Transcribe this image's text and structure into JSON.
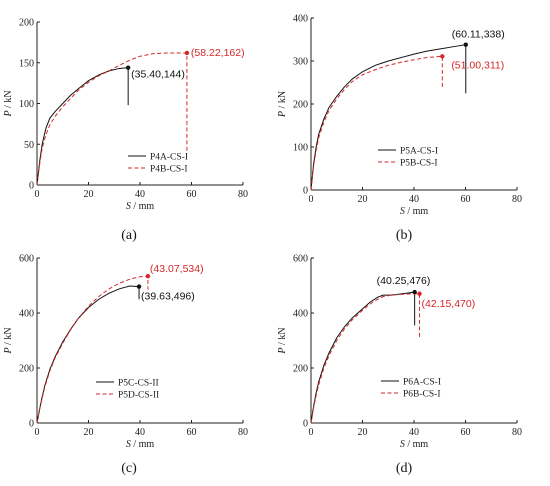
{
  "colors": {
    "black": "#111111",
    "red": "#d62728"
  },
  "chart_data": [
    {
      "type": "line",
      "panel_label": "(a)",
      "xlabel": "S",
      "xunit": "/ mm",
      "ylabel": "P",
      "yunit": "/ kN",
      "xlim": [
        0,
        80
      ],
      "ylim": [
        0,
        200
      ],
      "xticks": [
        0,
        20,
        40,
        60,
        80
      ],
      "yticks": [
        0,
        50,
        100,
        150,
        200
      ],
      "legend_position": "bottom-right",
      "series": [
        {
          "name": "P4A-CS-I",
          "color": "#111111",
          "dash": "solid",
          "x": [
            0,
            1,
            2,
            3.5,
            5,
            7,
            10,
            13,
            16,
            20,
            24,
            28,
            32,
            35.4,
            35.4,
            35.4
          ],
          "y": [
            0,
            28,
            50,
            70,
            82,
            90,
            100,
            110,
            118,
            128,
            135,
            140,
            143,
            144,
            125,
            98
          ]
        },
        {
          "name": "P4B-CS-I",
          "color": "#d62728",
          "dash": "dashed",
          "x": [
            0,
            1,
            2,
            3.5,
            5,
            7,
            10,
            13,
            16,
            20,
            24,
            28,
            32,
            36,
            40,
            45,
            50,
            55,
            58.22,
            58.22,
            58.22
          ],
          "y": [
            0,
            25,
            45,
            62,
            74,
            84,
            96,
            106,
            116,
            126,
            134,
            140,
            147,
            153,
            158,
            161,
            162,
            162,
            162,
            100,
            42
          ]
        }
      ],
      "annotations": [
        {
          "text": "(35.40,144)",
          "x": 35.4,
          "y": 144,
          "color": "#111111"
        },
        {
          "text": "(58.22,162)",
          "x": 58.22,
          "y": 162,
          "color": "#d62728"
        }
      ]
    },
    {
      "type": "line",
      "panel_label": "(b)",
      "xlabel": "S",
      "xunit": "/ mm",
      "ylabel": "P",
      "yunit": "/ kN",
      "xlim": [
        0,
        80
      ],
      "ylim": [
        0,
        400
      ],
      "xticks": [
        0,
        20,
        40,
        60,
        80
      ],
      "yticks": [
        0,
        100,
        200,
        300,
        400
      ],
      "legend_position": "bottom-right",
      "series": [
        {
          "name": "P5A-CS-I",
          "color": "#111111",
          "dash": "solid",
          "x": [
            0,
            1,
            2,
            3,
            5,
            7,
            10,
            13,
            16,
            20,
            25,
            30,
            35,
            40,
            45,
            50,
            55,
            60.11,
            60.11,
            60.11
          ],
          "y": [
            0,
            60,
            100,
            130,
            165,
            192,
            218,
            240,
            258,
            275,
            290,
            300,
            308,
            316,
            323,
            328,
            333,
            338,
            280,
            225
          ]
        },
        {
          "name": "P5B-CS-I",
          "color": "#d62728",
          "dash": "dashed",
          "x": [
            0,
            1,
            2,
            3,
            5,
            7,
            10,
            13,
            16,
            20,
            25,
            30,
            35,
            40,
            45,
            51.0,
            51.0,
            51.0
          ],
          "y": [
            0,
            55,
            92,
            122,
            158,
            185,
            212,
            234,
            252,
            268,
            280,
            290,
            297,
            303,
            308,
            311,
            270,
            235
          ]
        }
      ],
      "annotations": [
        {
          "text": "(60.11,338)",
          "x": 60.11,
          "y": 338,
          "color": "#111111"
        },
        {
          "text": "(51.00,311)",
          "x": 51.0,
          "y": 311,
          "color": "#d62728"
        }
      ]
    },
    {
      "type": "line",
      "panel_label": "(c)",
      "xlabel": "S",
      "xunit": "/ mm",
      "ylabel": "P",
      "yunit": "/ kN",
      "xlim": [
        0,
        80
      ],
      "ylim": [
        0,
        600
      ],
      "xticks": [
        0,
        20,
        40,
        60,
        80
      ],
      "yticks": [
        0,
        200,
        400,
        600
      ],
      "legend_position": "bottom-right",
      "series": [
        {
          "name": "P5C-CS-II",
          "color": "#111111",
          "dash": "solid",
          "x": [
            0,
            1,
            2,
            3,
            5,
            7,
            10,
            13,
            16,
            20,
            24,
            28,
            32,
            36,
            39.63,
            39.63,
            39.63
          ],
          "y": [
            0,
            50,
            95,
            135,
            195,
            240,
            295,
            340,
            380,
            420,
            450,
            472,
            488,
            498,
            496,
            475,
            450
          ]
        },
        {
          "name": "P5D-CS-II",
          "color": "#d62728",
          "dash": "dashed",
          "x": [
            0,
            1,
            2,
            3,
            5,
            7,
            10,
            13,
            16,
            20,
            24,
            28,
            32,
            36,
            40,
            43.07,
            43.07,
            43.07
          ],
          "y": [
            0,
            48,
            90,
            130,
            190,
            236,
            290,
            338,
            380,
            425,
            460,
            488,
            508,
            523,
            532,
            534,
            510,
            485
          ]
        }
      ],
      "annotations": [
        {
          "text": "(43.07,534)",
          "x": 43.07,
          "y": 534,
          "color": "#d62728"
        },
        {
          "text": "(39.63,496)",
          "x": 39.63,
          "y": 496,
          "color": "#111111"
        }
      ]
    },
    {
      "type": "line",
      "panel_label": "(d)",
      "xlabel": "S",
      "xunit": "/ mm",
      "ylabel": "P",
      "yunit": "/ kN",
      "xlim": [
        0,
        80
      ],
      "ylim": [
        0,
        600
      ],
      "xticks": [
        0,
        20,
        40,
        60,
        80
      ],
      "yticks": [
        0,
        200,
        400,
        600
      ],
      "legend_position": "bottom-right",
      "series": [
        {
          "name": "P6A-CS-I",
          "color": "#111111",
          "dash": "solid",
          "x": [
            0,
            1,
            2,
            3,
            5,
            7,
            10,
            13,
            16,
            20,
            23,
            26,
            28,
            31,
            34,
            37,
            40.25,
            40.25,
            40.25
          ],
          "y": [
            0,
            60,
            110,
            150,
            210,
            255,
            310,
            350,
            382,
            415,
            440,
            458,
            465,
            465,
            468,
            472,
            476,
            420,
            355
          ]
        },
        {
          "name": "P6B-CS-I",
          "color": "#d62728",
          "dash": "dashed",
          "x": [
            0,
            1,
            2,
            3,
            5,
            7,
            10,
            13,
            16,
            20,
            24,
            28,
            32,
            36,
            40,
            42.15,
            42.15,
            42.15
          ],
          "y": [
            0,
            55,
            100,
            140,
            200,
            245,
            300,
            342,
            375,
            410,
            440,
            460,
            466,
            468,
            470,
            470,
            390,
            310
          ]
        }
      ],
      "annotations": [
        {
          "text": "(40.25,476)",
          "x": 40.25,
          "y": 476,
          "color": "#111111"
        },
        {
          "text": "(42.15,470)",
          "x": 42.15,
          "y": 470,
          "color": "#d62728"
        }
      ]
    }
  ]
}
